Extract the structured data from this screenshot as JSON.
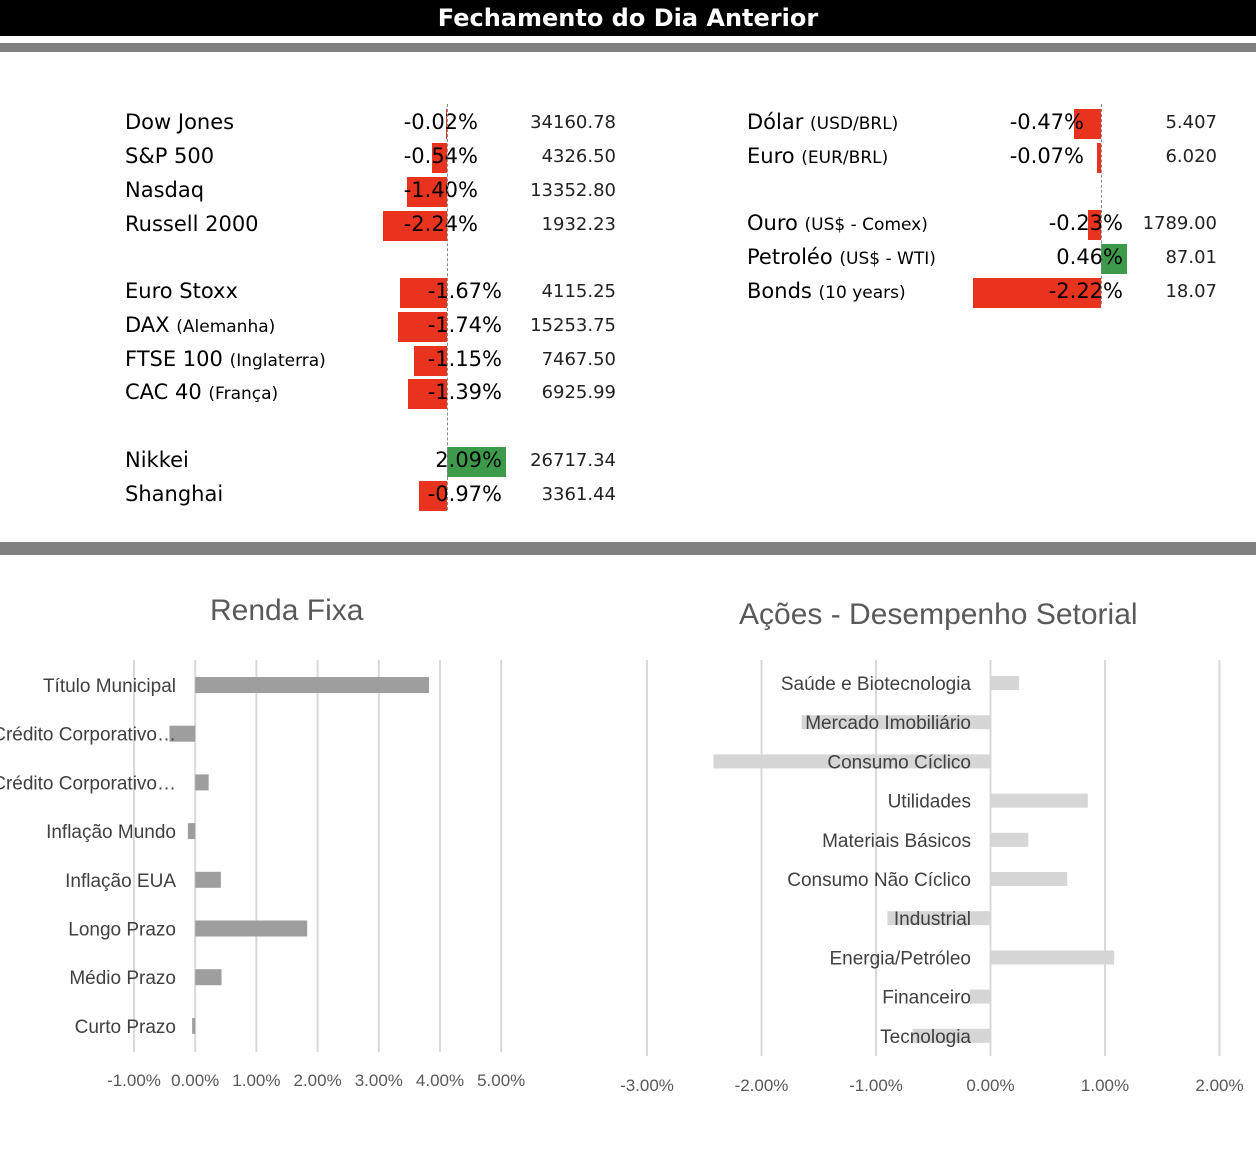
{
  "header": {
    "title": "Fechamento do Dia Anterior"
  },
  "colors": {
    "negative": "#e8341f",
    "positive": "#3c9a4a",
    "renda_bar": "#9e9e9e",
    "acoes_bar": "#d6d6d6",
    "rule": "#808080"
  },
  "markets_left": [
    {
      "name": "Dow Jones",
      "sub": "",
      "change_pct": -0.02,
      "change": "-0.02%",
      "value": "34160.78"
    },
    {
      "name": "S&P 500",
      "sub": "",
      "change_pct": -0.54,
      "change": "-0.54%",
      "value": "4326.50"
    },
    {
      "name": "Nasdaq",
      "sub": "",
      "change_pct": -1.4,
      "change": "-1.40%",
      "value": "13352.80"
    },
    {
      "name": "Russell 2000",
      "sub": "",
      "change_pct": -2.24,
      "change": "-2.24%",
      "value": "1932.23"
    },
    {
      "name": "Euro Stoxx",
      "sub": "",
      "change_pct": -1.67,
      "change": "-1.67%",
      "value": "4115.25"
    },
    {
      "name": "DAX",
      "sub": "(Alemanha)",
      "change_pct": -1.74,
      "change": "-1.74%",
      "value": "15253.75"
    },
    {
      "name": "FTSE 100",
      "sub": "(Inglaterra)",
      "change_pct": -1.15,
      "change": "-1.15%",
      "value": "7467.50"
    },
    {
      "name": "CAC 40",
      "sub": "(França)",
      "change_pct": -1.39,
      "change": "-1.39%",
      "value": "6925.99"
    },
    {
      "name": "Nikkei",
      "sub": "",
      "change_pct": 2.09,
      "change": "2.09%",
      "value": "26717.34"
    },
    {
      "name": "Shanghai",
      "sub": "",
      "change_pct": -0.97,
      "change": "-0.97%",
      "value": "3361.44"
    }
  ],
  "markets_right": [
    {
      "name": "Dólar",
      "sub": "(USD/BRL)",
      "change_pct": -0.47,
      "change": "-0.47%",
      "value": "5.407"
    },
    {
      "name": "Euro",
      "sub": "(EUR/BRL)",
      "change_pct": -0.07,
      "change": "-0.07%",
      "value": "6.020"
    },
    {
      "name": "Ouro",
      "sub": "(US$ - Comex)",
      "change_pct": -0.23,
      "change": "-0.23%",
      "value": "1789.00"
    },
    {
      "name": "Petroléo",
      "sub": "(US$ - WTI)",
      "change_pct": 0.46,
      "change": "0.46%",
      "value": "87.01"
    },
    {
      "name": "Bonds",
      "sub": "(10 years)",
      "change_pct": -2.22,
      "change": "-2.22%",
      "value": "18.07"
    }
  ],
  "chart_data": [
    {
      "type": "bar",
      "orientation": "horizontal",
      "title": "Renda Fixa",
      "categories": [
        "Título Municipal",
        "Crédito Corporativo…",
        "Crédito Corporativo…",
        "Inflação Mundo",
        "Inflação EUA",
        "Longo Prazo",
        "Médio Prazo",
        "Curto Prazo"
      ],
      "values": [
        3.82,
        -0.42,
        0.22,
        -0.12,
        0.42,
        1.83,
        0.43,
        -0.05
      ],
      "xlim": [
        -1,
        5
      ],
      "ticks": [
        -1,
        0,
        1,
        2,
        3,
        4,
        5
      ],
      "tick_labels": [
        "-1.00%",
        "0.00%",
        "1.00%",
        "2.00%",
        "3.00%",
        "4.00%",
        "5.00%"
      ],
      "grid": true
    },
    {
      "type": "bar",
      "orientation": "horizontal",
      "title": "Ações - Desempenho Setorial",
      "categories": [
        "Saúde e Biotecnologia",
        "Mercado Imobiliário",
        "Consumo Cíclico",
        "Utilidades",
        "Materiais Básicos",
        "Consumo Não Cíclico",
        "Industrial",
        "Energia/Petróleo",
        "Financeiro",
        "Tecnologia"
      ],
      "values": [
        0.25,
        -1.65,
        -2.42,
        0.85,
        0.33,
        0.67,
        -0.9,
        1.08,
        -0.18,
        -0.68
      ],
      "xlim": [
        -3,
        2
      ],
      "ticks": [
        -3,
        -2,
        -1,
        0,
        1,
        2
      ],
      "tick_labels": [
        "-3.00%",
        "-2.00%",
        "-1.00%",
        "0.00%",
        "1.00%",
        "2.00%"
      ],
      "grid": true
    }
  ]
}
